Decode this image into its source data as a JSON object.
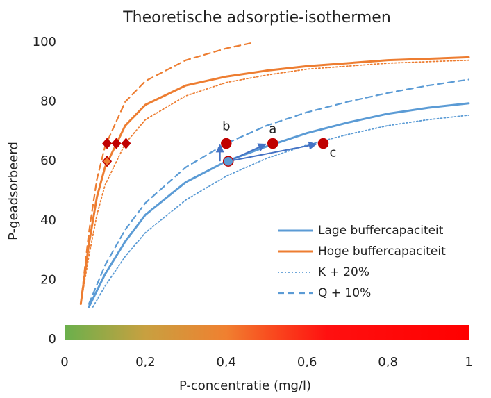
{
  "chart_data": {
    "type": "line",
    "title": "Theoretische adsorptie-isothermen",
    "x_label": "P-concentratie (mg/l)",
    "y_label": "P-geadsorbeerd",
    "xlim": [
      0,
      1
    ],
    "ylim": [
      0,
      100
    ],
    "xticks": [
      0,
      {
        "value": 0.2,
        "label": "0,2"
      },
      {
        "value": 0.4,
        "label": "0,4"
      },
      {
        "value": 0.6,
        "label": "0,6"
      },
      {
        "value": 0.8,
        "label": "0,8"
      },
      1
    ],
    "yticks": [
      0,
      20,
      40,
      60,
      80,
      100
    ],
    "series": [
      {
        "name": "Lage buffercapaciteit",
        "color": "#5b9bd5",
        "dash": "solid",
        "x": [
          0.06,
          0.1,
          0.15,
          0.2,
          0.3,
          0.4,
          0.5,
          0.6,
          0.7,
          0.8,
          0.9,
          1.0
        ],
        "values": [
          11,
          22,
          33,
          42,
          53,
          60,
          65,
          69.5,
          73,
          76,
          78,
          79.5
        ]
      },
      {
        "name": "Hoge buffercapaciteit",
        "color": "#ed7d31",
        "dash": "solid",
        "x": [
          0.04,
          0.06,
          0.08,
          0.1,
          0.15,
          0.2,
          0.3,
          0.4,
          0.5,
          0.6,
          0.8,
          1.0
        ],
        "values": [
          12,
          32,
          48,
          58,
          72,
          79,
          85.5,
          88.5,
          90.5,
          92,
          94,
          95
        ]
      },
      {
        "name": "K + 20%",
        "color": "#5b9bd5",
        "dash": "dotted",
        "x": [
          0.07,
          0.1,
          0.15,
          0.2,
          0.3,
          0.4,
          0.5,
          0.6,
          0.7,
          0.8,
          0.9,
          1.0
        ],
        "values": [
          11,
          18,
          28,
          36,
          47,
          55,
          61,
          65.5,
          69,
          72,
          74,
          75.5
        ]
      },
      {
        "name": "Q + 10%",
        "color": "#5b9bd5",
        "dash": "dashed",
        "x": [
          0.06,
          0.1,
          0.15,
          0.2,
          0.3,
          0.4,
          0.5,
          0.6,
          0.7,
          0.8,
          0.9,
          1.0
        ],
        "values": [
          12,
          25,
          37,
          46,
          58,
          66,
          72,
          76.5,
          80,
          83,
          85.5,
          87.5
        ]
      },
      {
        "color": "#ed7d31",
        "dash": "dotted",
        "x": [
          0.04,
          0.06,
          0.08,
          0.1,
          0.15,
          0.2,
          0.3,
          0.4,
          0.5,
          0.6,
          0.8,
          1.0
        ],
        "values": [
          12,
          28,
          42,
          52,
          66,
          74,
          82,
          86.5,
          89,
          91,
          93,
          94
        ]
      },
      {
        "color": "#ed7d31",
        "dash": "dashed",
        "x": [
          0.04,
          0.06,
          0.08,
          0.1,
          0.15,
          0.2,
          0.3,
          0.4,
          0.47
        ],
        "values": [
          12,
          36,
          54,
          65,
          80,
          87,
          94,
          98,
          100
        ]
      }
    ],
    "points": [
      {
        "x": 0.405,
        "y": 60,
        "shape": "circle",
        "color": "#5b9bd5",
        "stroke": "#c00000"
      },
      {
        "x": 0.4,
        "y": 66,
        "shape": "circle",
        "color": "#c00000",
        "label": "b"
      },
      {
        "x": 0.515,
        "y": 66,
        "shape": "circle",
        "color": "#c00000",
        "label": "a"
      },
      {
        "x": 0.64,
        "y": 66,
        "shape": "circle",
        "color": "#c00000",
        "label": "c"
      },
      {
        "x": 0.105,
        "y": 66,
        "shape": "diamond",
        "color": "#c00000"
      },
      {
        "x": 0.128,
        "y": 66,
        "shape": "diamond",
        "color": "#c00000"
      },
      {
        "x": 0.152,
        "y": 66,
        "shape": "diamond",
        "color": "#c00000"
      },
      {
        "x": 0.105,
        "y": 60,
        "shape": "diamond",
        "color": "#ed7d31",
        "stroke": "#c00000"
      }
    ],
    "legend": "right"
  }
}
